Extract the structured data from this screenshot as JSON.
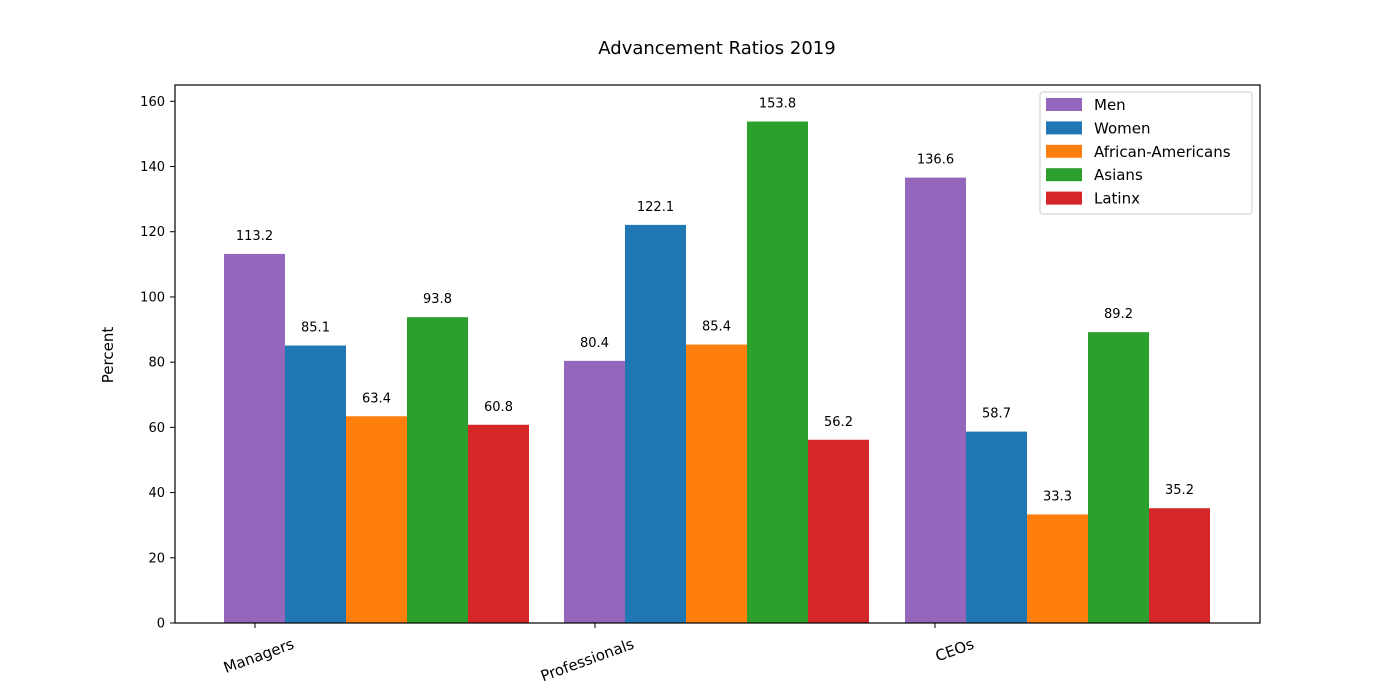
{
  "chart_data": {
    "type": "bar",
    "title": "Advancement Ratios 2019",
    "xlabel": "",
    "ylabel": "Percent",
    "categories": [
      "Managers",
      "Professionals",
      "CEOs"
    ],
    "ylim": [
      0,
      165
    ],
    "yticks": [
      0,
      20,
      40,
      60,
      80,
      100,
      120,
      140,
      160
    ],
    "grid": false,
    "legend_position": "top-right",
    "series": [
      {
        "name": "Men",
        "color": "#9467bd",
        "values": [
          113.2,
          80.4,
          136.6
        ]
      },
      {
        "name": "Women",
        "color": "#1f77b4",
        "values": [
          85.1,
          122.1,
          58.7
        ]
      },
      {
        "name": "African-Americans",
        "color": "#ff7f0e",
        "values": [
          63.4,
          85.4,
          33.3
        ]
      },
      {
        "name": "Asians",
        "color": "#2ca02c",
        "values": [
          93.8,
          153.8,
          89.2
        ]
      },
      {
        "name": "Latinx",
        "color": "#d62728",
        "values": [
          60.8,
          56.2,
          35.2
        ]
      }
    ]
  }
}
